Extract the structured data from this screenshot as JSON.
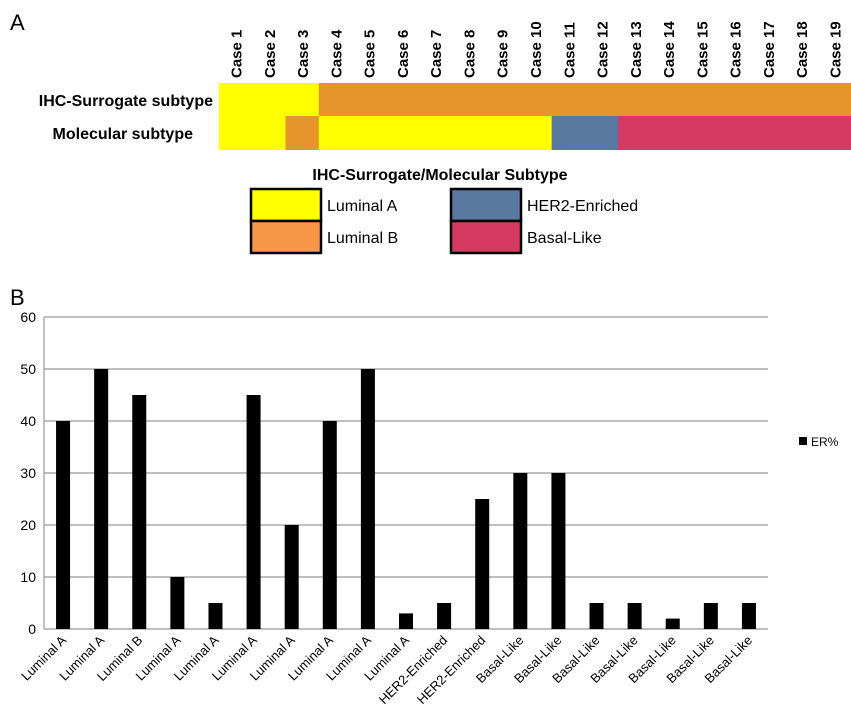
{
  "panel_a": {
    "letter": "A",
    "cases": [
      "Case 1",
      "Case 2",
      "Case 3",
      "Case 4",
      "Case 5",
      "Case 6",
      "Case 7",
      "Case 8",
      "Case 9",
      "Case 10",
      "Case 11",
      "Case 12",
      "Case 13",
      "Case 14",
      "Case 15",
      "Case 16",
      "Case 17",
      "Case 18",
      "Case 19"
    ],
    "rows": [
      {
        "label": "IHC-Surrogate subtype",
        "subtypes": [
          "Luminal A",
          "Luminal A",
          "Luminal A",
          "Luminal B",
          "Luminal B",
          "Luminal B",
          "Luminal B",
          "Luminal B",
          "Luminal B",
          "Luminal B",
          "Luminal B",
          "Luminal B",
          "Luminal B",
          "Luminal B",
          "Luminal B",
          "Luminal B",
          "Luminal B",
          "Luminal B",
          "Luminal B"
        ]
      },
      {
        "label": "Molecular subtype",
        "subtypes": [
          "Luminal A",
          "Luminal A",
          "Luminal B",
          "Luminal A",
          "Luminal A",
          "Luminal A",
          "Luminal A",
          "Luminal A",
          "Luminal A",
          "Luminal A",
          "HER2-Enriched",
          "HER2-Enriched",
          "Basal-Like",
          "Basal-Like",
          "Basal-Like",
          "Basal-Like",
          "Basal-Like",
          "Basal-Like",
          "Basal-Like"
        ]
      }
    ],
    "legend_title": "IHC-Surrogate/Molecular Subtype",
    "legend": [
      {
        "label": "Luminal A",
        "color": "#ffff00"
      },
      {
        "label": "Luminal B",
        "color": "#f79646"
      },
      {
        "label": "HER2-Enriched",
        "color": "#5878a0"
      },
      {
        "label": "Basal-Like",
        "color": "#d63a63"
      }
    ],
    "colors": {
      "Luminal A": "#ffff00",
      "Luminal B": "#e6952c",
      "HER2-Enriched": "#5878a0",
      "Basal-Like": "#d63a63"
    }
  },
  "panel_b": {
    "letter": "B"
  },
  "chart_data": {
    "type": "bar",
    "categories": [
      "Luminal A",
      "Luminal A",
      "Luminal B",
      "Luminal A",
      "Luminal A",
      "Luminal A",
      "Luminal A",
      "Luminal A",
      "Luminal A",
      "Luminal A",
      "HER2-Enriched",
      "HER2-Enriched",
      "Basal-Like",
      "Basal-Like",
      "Basal-Like",
      "Basal-Like",
      "Basal-Like",
      "Basal-Like",
      "Basal-Like"
    ],
    "series": [
      {
        "name": "ER%",
        "values": [
          40,
          50,
          45,
          10,
          5,
          45,
          20,
          40,
          50,
          3,
          5,
          25,
          30,
          30,
          5,
          5,
          2,
          5,
          5
        ],
        "color": "#000000"
      }
    ],
    "title": "",
    "xlabel": "",
    "ylabel": "",
    "ylim": [
      0,
      60
    ],
    "yticks": [
      0,
      10,
      20,
      30,
      40,
      50,
      60
    ],
    "grid": true,
    "legend_position": "right"
  }
}
